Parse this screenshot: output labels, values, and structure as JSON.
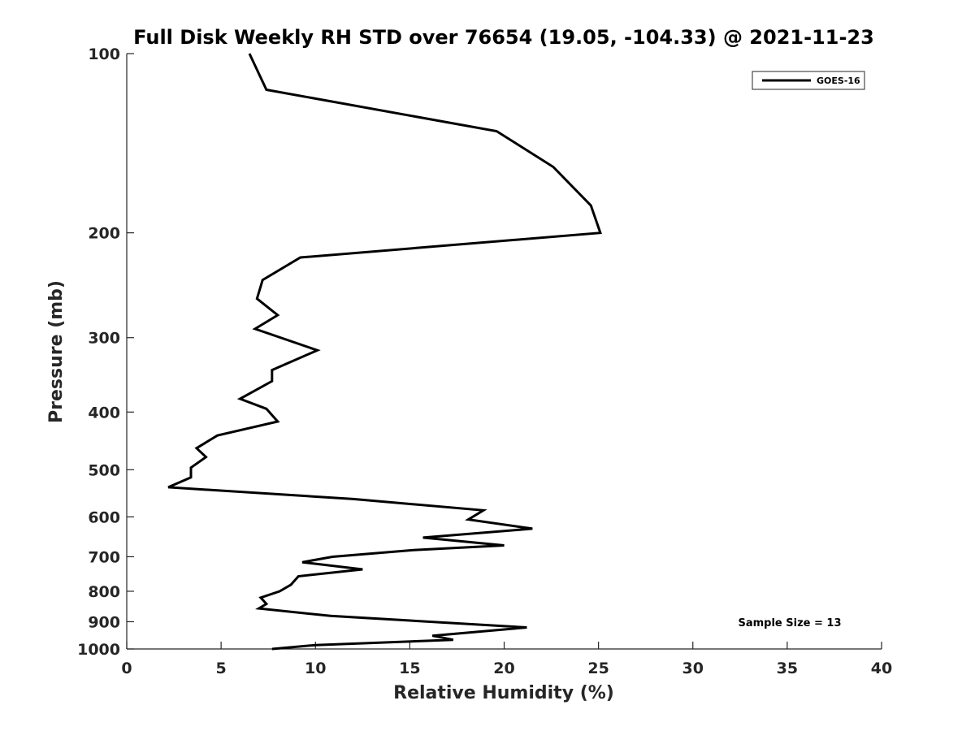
{
  "chart_data": {
    "type": "line",
    "title": "Full Disk Weekly RH STD over 76654 (19.05, -104.33) @ 2021-11-23",
    "xlabel": "Relative Humidity (%)",
    "ylabel": "Pressure (mb)",
    "xlim": [
      0,
      40
    ],
    "ylim": [
      100,
      1000
    ],
    "y_scale": "log",
    "y_reversed": true,
    "x_ticks": [
      0,
      5,
      10,
      15,
      20,
      25,
      30,
      35,
      40
    ],
    "y_ticks": [
      100,
      200,
      300,
      400,
      500,
      600,
      700,
      800,
      900,
      1000
    ],
    "grid": false,
    "legend": {
      "position": "top-right",
      "entries": [
        "GOES-16"
      ]
    },
    "annotation": "Sample Size = 13",
    "series": [
      {
        "name": "GOES-16",
        "color": "#000000",
        "points": [
          [
            6.5,
            100
          ],
          [
            7.4,
            115
          ],
          [
            19.6,
            135
          ],
          [
            22.6,
            155
          ],
          [
            24.6,
            180
          ],
          [
            25.1,
            200
          ],
          [
            9.2,
            220
          ],
          [
            7.2,
            240
          ],
          [
            6.9,
            258
          ],
          [
            8.0,
            275
          ],
          [
            6.8,
            290
          ],
          [
            10.1,
            315
          ],
          [
            7.7,
            340
          ],
          [
            7.7,
            355
          ],
          [
            6.0,
            380
          ],
          [
            7.4,
            395
          ],
          [
            8.0,
            415
          ],
          [
            4.8,
            438
          ],
          [
            3.7,
            460
          ],
          [
            4.2,
            476
          ],
          [
            3.4,
            496
          ],
          [
            3.4,
            515
          ],
          [
            2.2,
            535
          ],
          [
            12.0,
            560
          ],
          [
            18.9,
            585
          ],
          [
            18.1,
            606
          ],
          [
            21.5,
            628
          ],
          [
            15.7,
            650
          ],
          [
            20.0,
            670
          ],
          [
            15.2,
            682
          ],
          [
            10.9,
            700
          ],
          [
            9.3,
            715
          ],
          [
            12.5,
            735
          ],
          [
            9.1,
            755
          ],
          [
            8.7,
            780
          ],
          [
            8.1,
            800
          ],
          [
            7.1,
            820
          ],
          [
            7.4,
            840
          ],
          [
            7.0,
            855
          ],
          [
            10.8,
            880
          ],
          [
            21.2,
            920
          ],
          [
            16.2,
            950
          ],
          [
            17.3,
            965
          ],
          [
            10.0,
            985
          ],
          [
            7.7,
            1000
          ]
        ]
      }
    ]
  }
}
